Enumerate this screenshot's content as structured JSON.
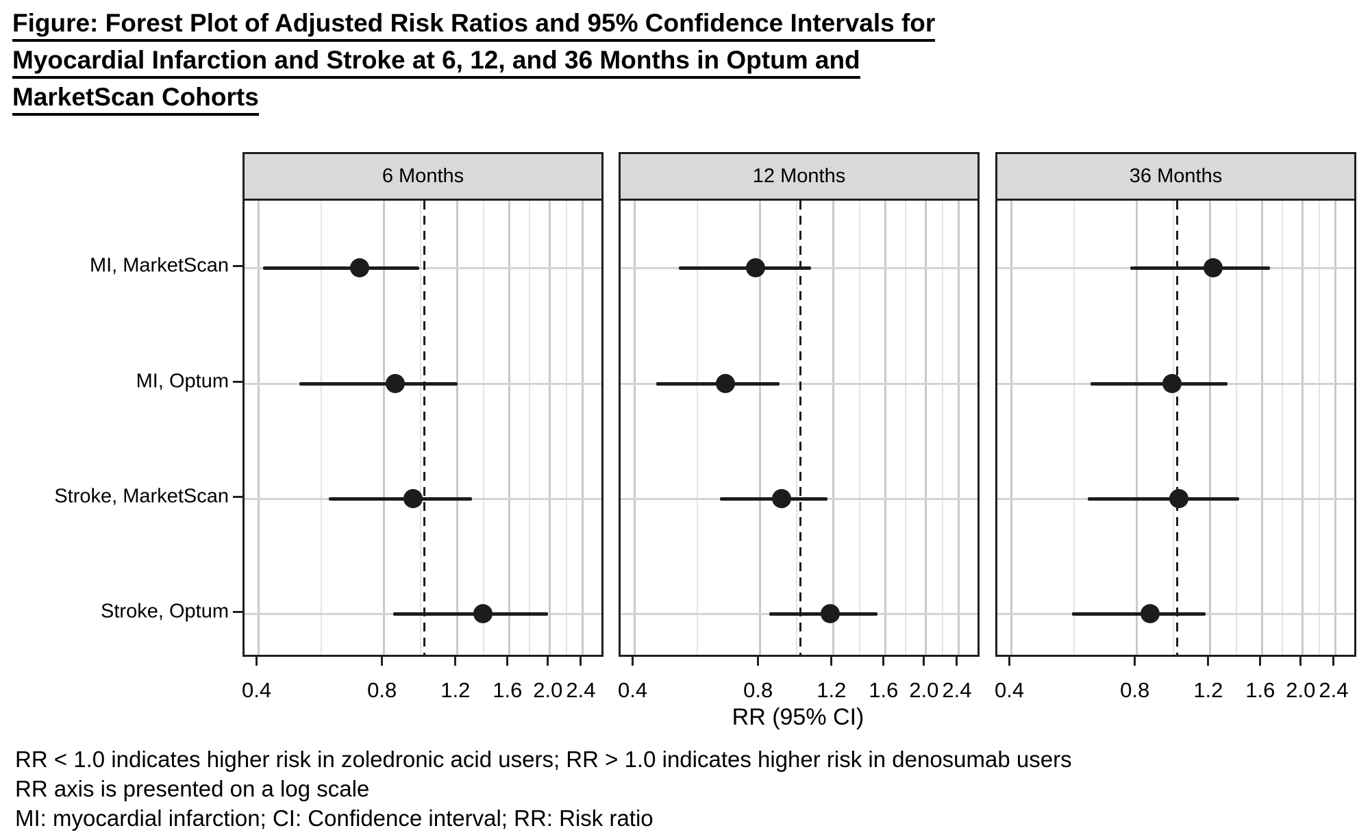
{
  "title": {
    "lines": [
      "Figure: Forest Plot of Adjusted Risk Ratios and 95% Confidence Intervals for",
      "Myocardial Infarction and Stroke at 6, 12, and 36 Months in Optum and",
      "MarketScan Cohorts"
    ]
  },
  "axis": {
    "label": "RR (95% CI)"
  },
  "footnotes": {
    "lines": [
      "RR < 1.0 indicates higher risk in zoledronic acid users; RR > 1.0 indicates higher risk in denosumab users",
      "RR axis is presented on a log scale",
      "MI: myocardial infarction; CI: Confidence interval; RR: Risk ratio"
    ]
  },
  "chart_data": {
    "type": "scatter",
    "subtype": "forest-plot",
    "title": "Figure: Forest Plot of Adjusted Risk Ratios and 95% Confidence Intervals for Myocardial Infarction and Stroke at 6, 12, and 36 Months in Optum and MarketScan Cohorts",
    "xlabel": "RR (95% CI)",
    "x_scale": "log",
    "x_domain": [
      0.37,
      2.72
    ],
    "x_ticks": [
      0.4,
      0.8,
      1.2,
      1.6,
      2.0,
      2.4
    ],
    "x_tick_labels": [
      "0.4",
      "0.8",
      "1.2",
      "1.6",
      "2.0",
      "2.4"
    ],
    "x_minor_gridlines": [
      0.566,
      0.98,
      1.386,
      1.789,
      2.19
    ],
    "reference_line": 1.0,
    "grid": true,
    "legend": false,
    "categories": [
      "MI, MarketScan",
      "MI, Optum",
      "Stroke, MarketScan",
      "Stroke, Optum"
    ],
    "panels": [
      {
        "label": "6 Months",
        "estimates": [
          {
            "category": "MI, MarketScan",
            "rr": 0.7,
            "ci_low": 0.41,
            "ci_high": 0.97
          },
          {
            "category": "MI, Optum",
            "rr": 0.85,
            "ci_low": 0.5,
            "ci_high": 1.2
          },
          {
            "category": "Stroke, MarketScan",
            "rr": 0.94,
            "ci_low": 0.59,
            "ci_high": 1.3
          },
          {
            "category": "Stroke, Optum",
            "rr": 1.38,
            "ci_low": 0.84,
            "ci_high": 1.98
          }
        ]
      },
      {
        "label": "12 Months",
        "estimates": [
          {
            "category": "MI, MarketScan",
            "rr": 0.78,
            "ci_low": 0.51,
            "ci_high": 1.06
          },
          {
            "category": "MI, Optum",
            "rr": 0.66,
            "ci_low": 0.45,
            "ci_high": 0.89
          },
          {
            "category": "Stroke, MarketScan",
            "rr": 0.9,
            "ci_low": 0.64,
            "ci_high": 1.16
          },
          {
            "category": "Stroke, Optum",
            "rr": 1.18,
            "ci_low": 0.84,
            "ci_high": 1.53
          }
        ]
      },
      {
        "label": "36 Months",
        "estimates": [
          {
            "category": "MI, MarketScan",
            "rr": 1.22,
            "ci_low": 0.77,
            "ci_high": 1.67
          },
          {
            "category": "MI, Optum",
            "rr": 0.97,
            "ci_low": 0.62,
            "ci_high": 1.32
          },
          {
            "category": "Stroke, MarketScan",
            "rr": 1.01,
            "ci_low": 0.61,
            "ci_high": 1.41
          },
          {
            "category": "Stroke, Optum",
            "rr": 0.86,
            "ci_low": 0.56,
            "ci_high": 1.17
          }
        ]
      }
    ]
  },
  "colors": {
    "header_bg": "#d9d9d9",
    "panel_border": "#1f1f1f",
    "grid_major": "#c9c9c9",
    "grid_minor": "#e4e4e4",
    "row_gridline": "#d4d4d4",
    "point": "#1c1c1c",
    "text": "#000000",
    "background": "#ffffff"
  }
}
